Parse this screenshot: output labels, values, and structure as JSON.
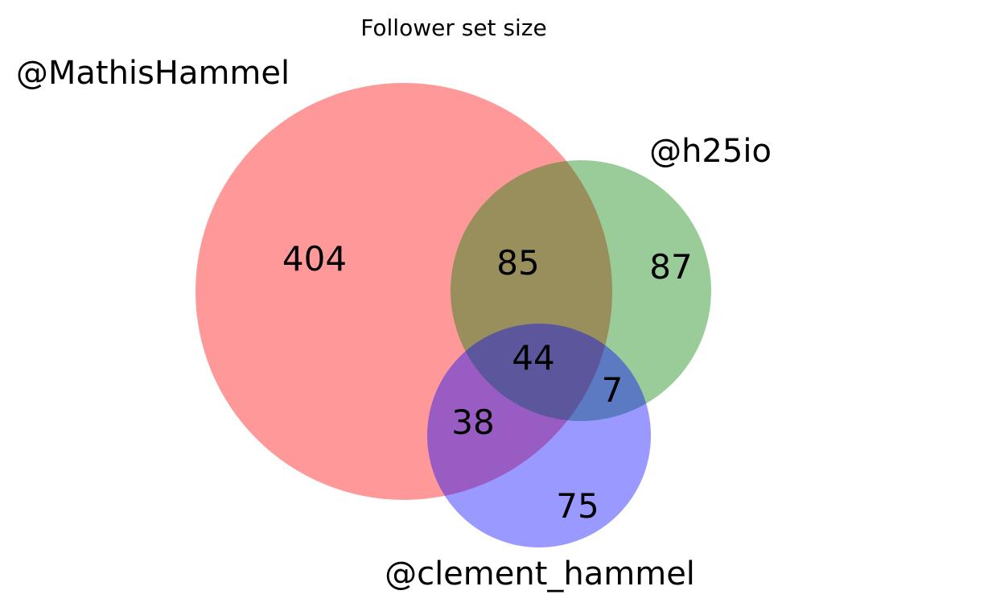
{
  "title": "Follower set size",
  "sets": [
    {
      "key": "A",
      "label": "@MathisHammel",
      "color": "#ff0000"
    },
    {
      "key": "B",
      "label": "@h25io",
      "color": "#008000"
    },
    {
      "key": "C",
      "label": "@clement_hammel",
      "color": "#0000ff"
    }
  ],
  "alpha": 0.4,
  "regions": {
    "A_only": "404",
    "B_only": "87",
    "C_only": "75",
    "A_and_B": "85",
    "A_and_C": "38",
    "B_and_C": "7",
    "A_B_C": "44"
  }
}
